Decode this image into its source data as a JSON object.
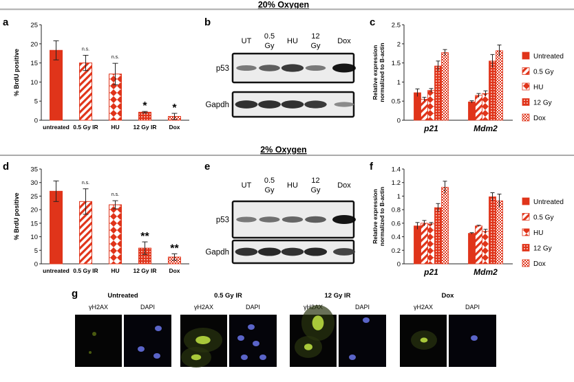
{
  "figure": {
    "sections": [
      {
        "title": "20% Oxygen"
      },
      {
        "title": "2% Oxygen"
      }
    ],
    "panel_letters": [
      "a",
      "b",
      "c",
      "d",
      "e",
      "f",
      "g"
    ],
    "blots": [
      {
        "lanes": [
          "UT",
          "0.5\nGy",
          "HU",
          "12\nGy",
          "Dox"
        ],
        "rows": [
          {
            "label": "p53",
            "intensity": [
              0.45,
              0.6,
              0.8,
              0.45,
              1.0
            ]
          },
          {
            "label": "Gapdh",
            "intensity": [
              0.85,
              0.85,
              0.85,
              0.8,
              0.35
            ]
          }
        ]
      },
      {
        "lanes": [
          "UT",
          "0.5\nGy",
          "HU",
          "12\nGy",
          "Dox"
        ],
        "rows": [
          {
            "label": "p53",
            "intensity": [
              0.45,
              0.5,
              0.55,
              0.6,
              1.0
            ]
          },
          {
            "label": "Gapdh",
            "intensity": [
              0.85,
              0.9,
              0.85,
              0.9,
              0.75
            ]
          }
        ]
      }
    ],
    "microscopy": {
      "groups": [
        "Untreated",
        "0.5 Gy IR",
        "12 Gy IR",
        "Dox"
      ],
      "channel_labels": [
        "γH2AX",
        "DAPI"
      ]
    }
  },
  "chart_data": [
    {
      "type": "bar",
      "panel": "a",
      "ylabel": "% BrdU positive",
      "ylim": [
        0,
        25
      ],
      "yticks": [
        0,
        5,
        10,
        15,
        20,
        25
      ],
      "categories": [
        "untreated",
        "0.5 Gy IR",
        "HU",
        "12 Gy IR",
        "Dox"
      ],
      "values": [
        18.3,
        15.0,
        12.1,
        2.1,
        1.0
      ],
      "errors": [
        2.5,
        2.0,
        2.8,
        0.2,
        0.8
      ],
      "annotations": [
        "",
        "n.s.",
        "n.s.",
        "*",
        "*"
      ],
      "fills": [
        "solid",
        "diag",
        "diamond",
        "dots",
        "check"
      ]
    },
    {
      "type": "bar",
      "panel": "d",
      "ylabel": "% BrdU positive",
      "ylim": [
        0,
        35
      ],
      "yticks": [
        0,
        5,
        10,
        15,
        20,
        25,
        30,
        35
      ],
      "categories": [
        "untreated",
        "0.5 Gy IR",
        "HU",
        "12 Gy IR",
        "Dox"
      ],
      "values": [
        26.8,
        23.0,
        21.8,
        5.8,
        2.5
      ],
      "errors": [
        3.8,
        4.7,
        1.5,
        2.3,
        1.2
      ],
      "annotations": [
        "",
        "n.s.",
        "n.s.",
        "**",
        "**"
      ],
      "fills": [
        "solid",
        "diag",
        "diamond",
        "dots",
        "check"
      ]
    },
    {
      "type": "bar",
      "panel": "c",
      "ylabel": "Relative expression\nnormalized to B-actin",
      "ylim": [
        0,
        2.5
      ],
      "yticks": [
        0,
        0.5,
        1,
        1.5,
        2,
        2.5
      ],
      "categories": [
        "p21",
        "Mdm2"
      ],
      "series": [
        {
          "name": "Untreated",
          "values": [
            0.72,
            0.48
          ],
          "errors": [
            0.1,
            0.03
          ],
          "fill": "solid"
        },
        {
          "name": "0.5 Gy",
          "values": [
            0.55,
            0.65
          ],
          "errors": [
            0.05,
            0.05
          ],
          "fill": "diag"
        },
        {
          "name": "HU",
          "values": [
            0.78,
            0.7
          ],
          "errors": [
            0.05,
            0.07
          ],
          "fill": "diamond"
        },
        {
          "name": "12 Gy",
          "values": [
            1.42,
            1.55
          ],
          "errors": [
            0.13,
            0.17
          ],
          "fill": "dots"
        },
        {
          "name": "Dox",
          "values": [
            1.77,
            1.82
          ],
          "errors": [
            0.08,
            0.15
          ],
          "fill": "check"
        }
      ]
    },
    {
      "type": "bar",
      "panel": "f",
      "ylabel": "Relative expression\nnormalized to B-actin",
      "ylim": [
        0,
        1.4
      ],
      "yticks": [
        0,
        0.2,
        0.4,
        0.6,
        0.8,
        1,
        1.2,
        1.4
      ],
      "categories": [
        "p21",
        "Mdm2"
      ],
      "series": [
        {
          "name": "Untreated",
          "values": [
            0.56,
            0.45
          ],
          "errors": [
            0.05,
            0.01
          ],
          "fill": "solid"
        },
        {
          "name": "0.5 Gy",
          "values": [
            0.6,
            0.56
          ],
          "errors": [
            0.04,
            0.01
          ],
          "fill": "diag"
        },
        {
          "name": "HU",
          "values": [
            0.59,
            0.48
          ],
          "errors": [
            0.02,
            0.03
          ],
          "fill": "diamond"
        },
        {
          "name": "12 Gy",
          "values": [
            0.83,
            0.99
          ],
          "errors": [
            0.06,
            0.06
          ],
          "fill": "dots"
        },
        {
          "name": "Dox",
          "values": [
            1.13,
            0.93
          ],
          "errors": [
            0.09,
            0.1
          ],
          "fill": "check"
        }
      ]
    }
  ]
}
